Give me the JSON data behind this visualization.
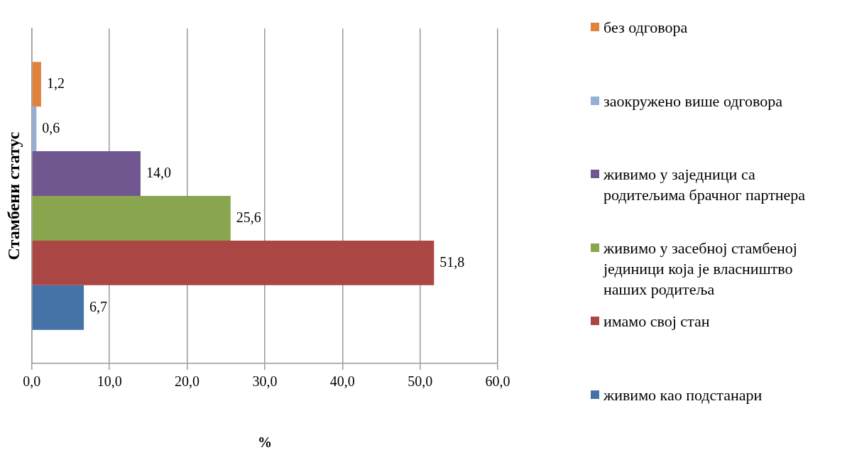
{
  "chart_data": {
    "type": "bar",
    "orientation": "horizontal",
    "categories": [
      null
    ],
    "xlabel": "%",
    "ylabel": "Стамбени статус",
    "xlim": [
      0,
      60
    ],
    "xticks": [
      {
        "value": 0,
        "label": "0,0"
      },
      {
        "value": 10,
        "label": "10,0"
      },
      {
        "value": 20,
        "label": "20,0"
      },
      {
        "value": 30,
        "label": "30,0"
      },
      {
        "value": 40,
        "label": "40,0"
      },
      {
        "value": 50,
        "label": "50,0"
      },
      {
        "value": 60,
        "label": "60,0"
      }
    ],
    "grid": "x",
    "legend": "right",
    "series": [
      {
        "name": "без одговора",
        "color": "#e0823c",
        "values": [
          1.2
        ],
        "value_labels": [
          "1,2"
        ]
      },
      {
        "name": "заокружено више одговора",
        "color": "#95aed6",
        "values": [
          0.6
        ],
        "value_labels": [
          "0,6"
        ]
      },
      {
        "name": "живимо у заједници са родитељима брачног партнера",
        "color": "#70578f",
        "values": [
          14.0
        ],
        "value_labels": [
          "14,0"
        ]
      },
      {
        "name": "живимо у засебној стамбеној јединици која је власништво наших родитеља",
        "color": "#89a54e",
        "values": [
          25.6
        ],
        "value_labels": [
          "25,6"
        ]
      },
      {
        "name": "имамо свој стан",
        "color": "#aa4644",
        "values": [
          51.8
        ],
        "value_labels": [
          "51,8"
        ]
      },
      {
        "name": "живимо као подстанари",
        "color": "#4572a7",
        "values": [
          6.7
        ],
        "value_labels": [
          "6,7"
        ]
      }
    ]
  }
}
